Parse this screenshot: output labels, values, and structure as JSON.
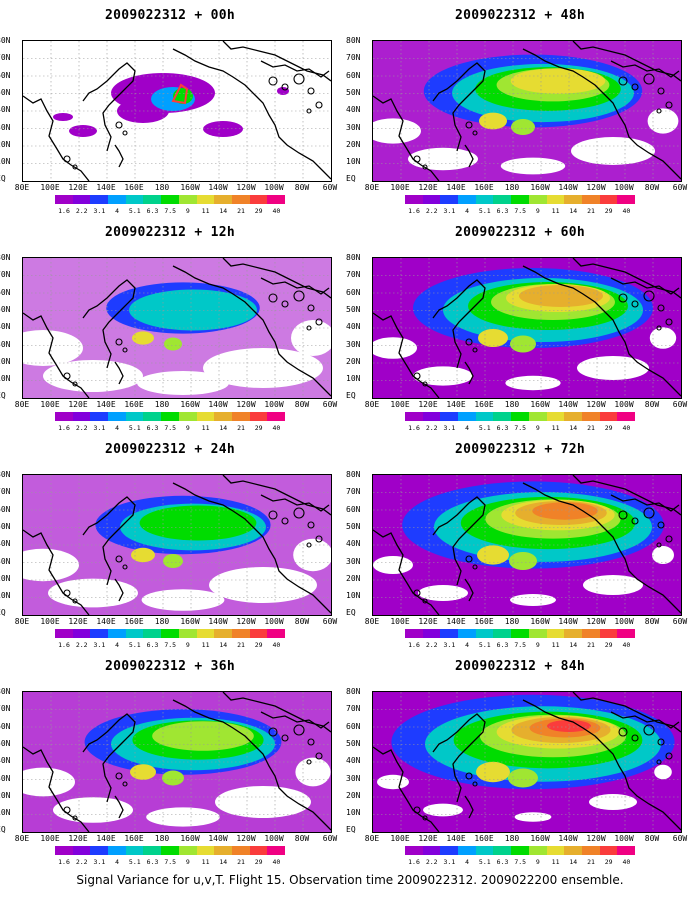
{
  "panels": [
    {
      "title": "2009022312 + 00h",
      "level": 0
    },
    {
      "title": "2009022312 + 48h",
      "level": 4
    },
    {
      "title": "2009022312 + 12h",
      "level": 1
    },
    {
      "title": "2009022312 + 60h",
      "level": 5
    },
    {
      "title": "2009022312 + 24h",
      "level": 2
    },
    {
      "title": "2009022312 + 72h",
      "level": 6
    },
    {
      "title": "2009022312 + 36h",
      "level": 3
    },
    {
      "title": "2009022312 + 84h",
      "level": 7
    }
  ],
  "lat_labels": [
    "80N",
    "70N",
    "60N",
    "50N",
    "40N",
    "30N",
    "20N",
    "10N",
    "EQ"
  ],
  "lon_labels": [
    "80E",
    "100E",
    "120E",
    "140E",
    "160E",
    "180",
    "160W",
    "140W",
    "120W",
    "100W",
    "80W",
    "60W"
  ],
  "colorbar": {
    "colors": [
      "#a000c8",
      "#8200dc",
      "#1e3cff",
      "#00a0ff",
      "#00c8c8",
      "#00d28c",
      "#00dc00",
      "#a0e632",
      "#e6dc32",
      "#e6af2d",
      "#f08228",
      "#fa3c3c",
      "#f00082"
    ],
    "labels": [
      "1.6",
      "2.2",
      "3.1",
      "4",
      "5.1",
      "6.3",
      "7.5",
      "9",
      "11",
      "14",
      "21",
      "29",
      "40"
    ]
  },
  "caption": "Signal Variance for u,v,T. Flight 15. Observation time 2009022312. 2009022200 ensemble."
}
